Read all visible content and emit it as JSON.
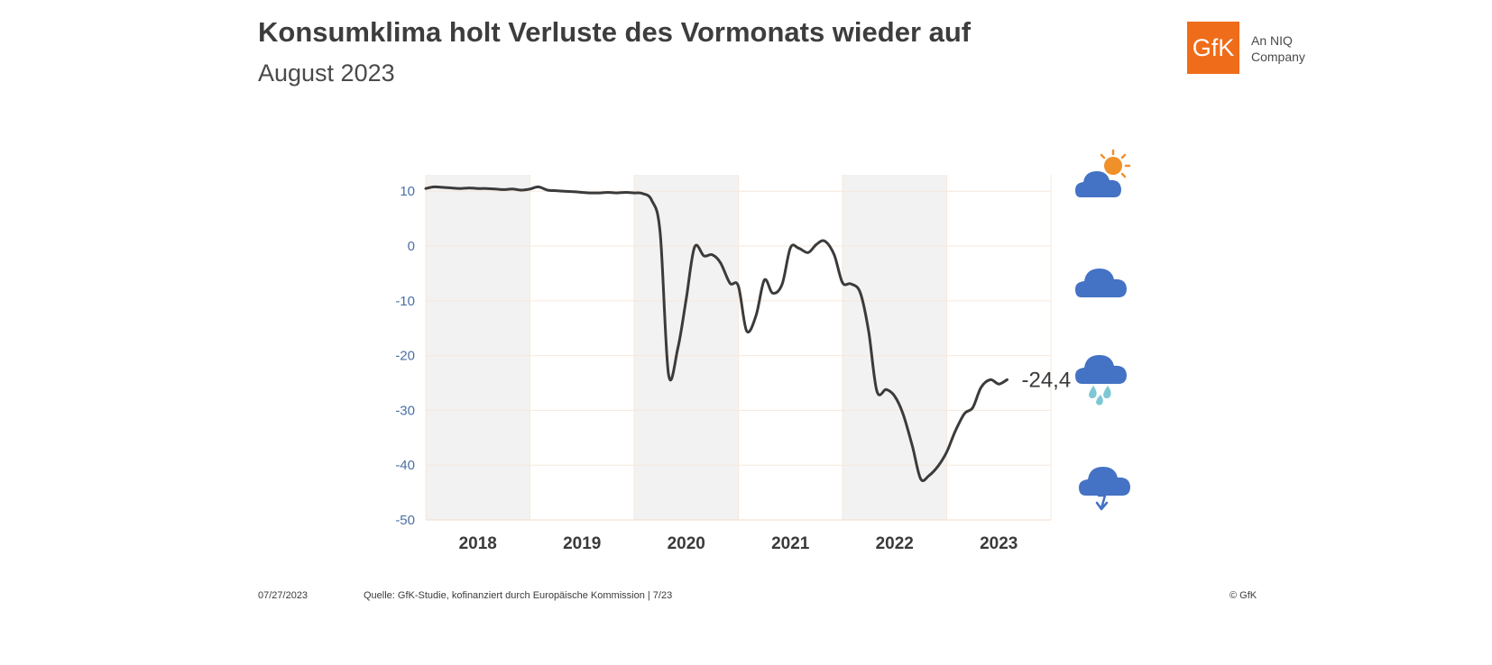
{
  "header": {
    "title": "Konsumklima holt Verluste des Vormonats wieder auf",
    "subtitle": "August 2023"
  },
  "logo": {
    "mark": "GfK",
    "tagline_line1": "An NIQ",
    "tagline_line2": "Company",
    "color": "#ef6c1a"
  },
  "chart_data": {
    "type": "line",
    "title": "",
    "xlabel": "",
    "ylabel": "",
    "ylim": [
      -50,
      13
    ],
    "xlim": [
      2018.0,
      2024.0
    ],
    "y_ticks": [
      "10",
      "0",
      "-10",
      "-20",
      "-30",
      "-40",
      "-50"
    ],
    "y_tick_values": [
      10,
      0,
      -10,
      -20,
      -30,
      -40,
      -50
    ],
    "x_categories": [
      "2018",
      "2019",
      "2020",
      "2021",
      "2022",
      "2023"
    ],
    "shaded_years": [
      "2018",
      "2020",
      "2022"
    ],
    "grid": true,
    "line_color": "#3b3b3b",
    "tick_color": "#4a6fa5",
    "shade_color": "#f2f2f2",
    "last_value_label": "-24,4",
    "series": [
      {
        "values": [
          [
            2018.0,
            10.5
          ],
          [
            2018.08,
            10.8
          ],
          [
            2018.17,
            10.7
          ],
          [
            2018.25,
            10.6
          ],
          [
            2018.33,
            10.5
          ],
          [
            2018.42,
            10.6
          ],
          [
            2018.5,
            10.5
          ],
          [
            2018.58,
            10.5
          ],
          [
            2018.67,
            10.4
          ],
          [
            2018.75,
            10.3
          ],
          [
            2018.83,
            10.4
          ],
          [
            2018.92,
            10.2
          ],
          [
            2019.0,
            10.4
          ],
          [
            2019.08,
            10.8
          ],
          [
            2019.17,
            10.2
          ],
          [
            2019.25,
            10.1
          ],
          [
            2019.33,
            10.0
          ],
          [
            2019.42,
            9.9
          ],
          [
            2019.5,
            9.8
          ],
          [
            2019.58,
            9.7
          ],
          [
            2019.67,
            9.7
          ],
          [
            2019.75,
            9.8
          ],
          [
            2019.83,
            9.7
          ],
          [
            2019.92,
            9.8
          ],
          [
            2020.0,
            9.7
          ],
          [
            2020.08,
            9.6
          ],
          [
            2020.17,
            8.3
          ],
          [
            2020.25,
            2.3
          ],
          [
            2020.33,
            -23.4
          ],
          [
            2020.42,
            -18.6
          ],
          [
            2020.5,
            -9.6
          ],
          [
            2020.58,
            -0.2
          ],
          [
            2020.67,
            -1.8
          ],
          [
            2020.75,
            -1.6
          ],
          [
            2020.83,
            -3.1
          ],
          [
            2020.92,
            -6.8
          ],
          [
            2021.0,
            -7.3
          ],
          [
            2021.08,
            -15.5
          ],
          [
            2021.17,
            -12.7
          ],
          [
            2021.25,
            -6.2
          ],
          [
            2021.33,
            -8.6
          ],
          [
            2021.42,
            -7.0
          ],
          [
            2021.5,
            -0.3
          ],
          [
            2021.58,
            -0.4
          ],
          [
            2021.67,
            -1.2
          ],
          [
            2021.75,
            0.3
          ],
          [
            2021.83,
            0.9
          ],
          [
            2021.92,
            -1.6
          ],
          [
            2022.0,
            -6.7
          ],
          [
            2022.08,
            -6.9
          ],
          [
            2022.17,
            -8.5
          ],
          [
            2022.25,
            -15.5
          ],
          [
            2022.33,
            -26.5
          ],
          [
            2022.42,
            -26.2
          ],
          [
            2022.5,
            -27.4
          ],
          [
            2022.58,
            -30.6
          ],
          [
            2022.67,
            -36.5
          ],
          [
            2022.75,
            -42.5
          ],
          [
            2022.83,
            -41.9
          ],
          [
            2022.92,
            -40.1
          ],
          [
            2023.0,
            -37.6
          ],
          [
            2023.08,
            -33.9
          ],
          [
            2023.17,
            -30.6
          ],
          [
            2023.25,
            -29.5
          ],
          [
            2023.33,
            -25.8
          ],
          [
            2023.42,
            -24.4
          ],
          [
            2023.5,
            -25.2
          ],
          [
            2023.58,
            -24.4
          ]
        ]
      }
    ]
  },
  "weather_icons": [
    "sun-cloud-icon",
    "cloud-icon",
    "rain-cloud-icon",
    "thunderstorm-cloud-icon"
  ],
  "weather_colors": {
    "cloud": "#4472c4",
    "sun": "#f0902a",
    "rain": "#7ec8d6"
  },
  "footer": {
    "date": "07/27/2023",
    "source": "Quelle: GfK-Studie, kofinanziert durch Europäische Kommission | 7/23",
    "copyright": "© GfK"
  }
}
